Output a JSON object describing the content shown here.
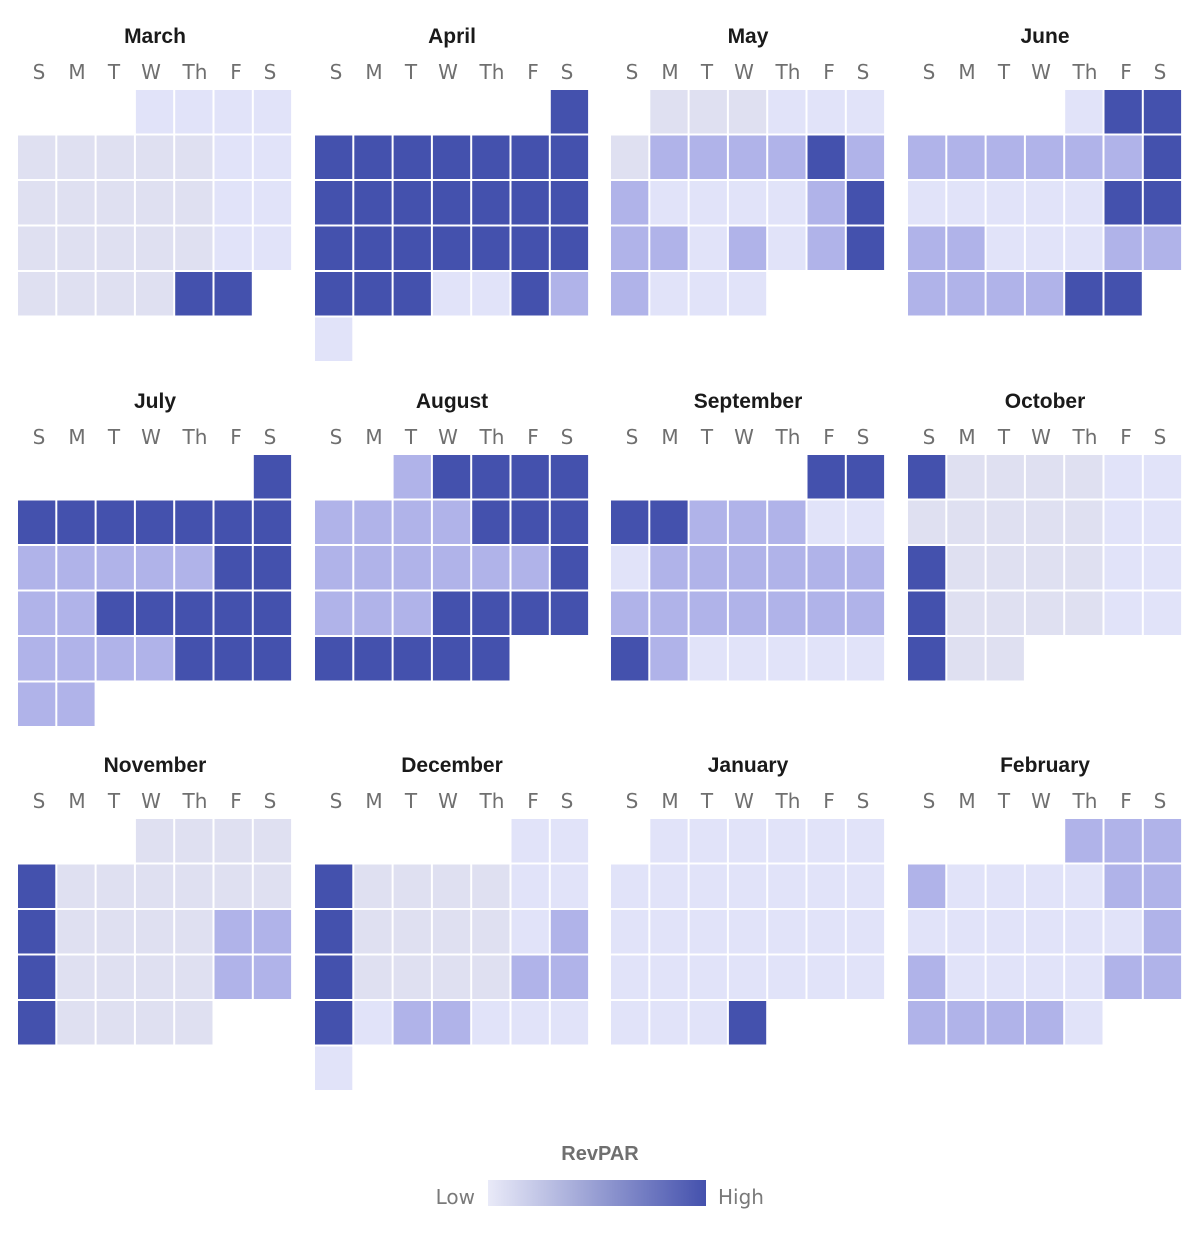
{
  "chart_data": {
    "type": "heatmap",
    "subtype": "calendar",
    "measure": "RevPAR",
    "scale": {
      "min": 0,
      "max": 4,
      "low_color": "#e9eaf8",
      "high_color": "#4451ad",
      "levels": [
        "#dfe0f1",
        "#e1e3f9",
        "#b0b3e9",
        "#4451ad"
      ]
    },
    "weekday_labels": [
      "S",
      "M",
      "T",
      "W",
      "Th",
      "F",
      "S"
    ],
    "months": [
      {
        "name": "March",
        "first_weekday": 3,
        "values": [
          1,
          1,
          1,
          1,
          0,
          0,
          0,
          0,
          0,
          1,
          1,
          0,
          0,
          0,
          0,
          0,
          1,
          1,
          0,
          0,
          0,
          0,
          0,
          1,
          1,
          0,
          0,
          0,
          0,
          3,
          3
        ]
      },
      {
        "name": "April",
        "first_weekday": 6,
        "values": [
          3,
          3,
          3,
          3,
          3,
          3,
          3,
          3,
          3,
          3,
          3,
          3,
          3,
          3,
          3,
          3,
          3,
          3,
          3,
          3,
          3,
          3,
          3,
          3,
          3,
          1,
          1,
          3,
          2,
          1
        ]
      },
      {
        "name": "May",
        "first_weekday": 1,
        "values": [
          0,
          0,
          0,
          1,
          1,
          1,
          0,
          2,
          2,
          2,
          2,
          3,
          2,
          2,
          1,
          1,
          1,
          1,
          2,
          3,
          2,
          2,
          1,
          2,
          1,
          2,
          3,
          2,
          1,
          1,
          1
        ]
      },
      {
        "name": "June",
        "first_weekday": 4,
        "values": [
          1,
          3,
          3,
          2,
          2,
          2,
          2,
          2,
          2,
          3,
          1,
          1,
          1,
          1,
          1,
          3,
          3,
          2,
          2,
          1,
          1,
          1,
          2,
          2,
          2,
          2,
          2,
          2,
          3,
          3
        ]
      },
      {
        "name": "July",
        "first_weekday": 6,
        "values": [
          3,
          3,
          3,
          3,
          3,
          3,
          3,
          3,
          2,
          2,
          2,
          2,
          2,
          3,
          3,
          2,
          2,
          3,
          3,
          3,
          3,
          3,
          2,
          2,
          2,
          2,
          3,
          3,
          3,
          2,
          2
        ]
      },
      {
        "name": "August",
        "first_weekday": 2,
        "values": [
          2,
          3,
          3,
          3,
          3,
          2,
          2,
          2,
          2,
          3,
          3,
          3,
          2,
          2,
          2,
          2,
          2,
          2,
          3,
          2,
          2,
          2,
          3,
          3,
          3,
          3,
          3,
          3,
          3,
          3,
          3
        ]
      },
      {
        "name": "September",
        "first_weekday": 5,
        "values": [
          3,
          3,
          3,
          3,
          2,
          2,
          2,
          1,
          1,
          1,
          2,
          2,
          2,
          2,
          2,
          2,
          2,
          2,
          2,
          2,
          2,
          2,
          2,
          3,
          2,
          1,
          1,
          1,
          1,
          1
        ]
      },
      {
        "name": "October",
        "first_weekday": 0,
        "values": [
          3,
          0,
          0,
          0,
          0,
          1,
          1,
          0,
          0,
          0,
          0,
          0,
          1,
          1,
          3,
          0,
          0,
          0,
          0,
          1,
          1,
          3,
          0,
          0,
          0,
          0,
          1,
          1,
          3,
          0,
          0
        ]
      },
      {
        "name": "November",
        "first_weekday": 3,
        "values": [
          0,
          0,
          0,
          0,
          3,
          0,
          0,
          0,
          0,
          0,
          0,
          3,
          0,
          0,
          0,
          0,
          2,
          2,
          3,
          0,
          0,
          0,
          0,
          2,
          2,
          3,
          0,
          0,
          0,
          0
        ]
      },
      {
        "name": "December",
        "first_weekday": 5,
        "values": [
          1,
          1,
          3,
          0,
          0,
          0,
          0,
          1,
          1,
          3,
          0,
          0,
          0,
          0,
          1,
          2,
          3,
          0,
          0,
          0,
          0,
          2,
          2,
          3,
          1,
          2,
          2,
          1,
          1,
          1,
          1
        ]
      },
      {
        "name": "January",
        "first_weekday": 1,
        "values": [
          1,
          1,
          1,
          1,
          1,
          1,
          1,
          1,
          1,
          1,
          1,
          1,
          1,
          1,
          1,
          1,
          1,
          1,
          1,
          1,
          1,
          1,
          1,
          1,
          1,
          1,
          1,
          1,
          1,
          1,
          3
        ]
      },
      {
        "name": "February",
        "first_weekday": 4,
        "values": [
          2,
          2,
          2,
          2,
          1,
          1,
          1,
          1,
          2,
          2,
          1,
          1,
          1,
          1,
          1,
          1,
          2,
          2,
          1,
          1,
          1,
          1,
          2,
          2,
          2,
          2,
          2,
          2,
          1
        ]
      }
    ],
    "legend": {
      "title": "RevPAR",
      "low_label": "Low",
      "high_label": "High"
    }
  }
}
